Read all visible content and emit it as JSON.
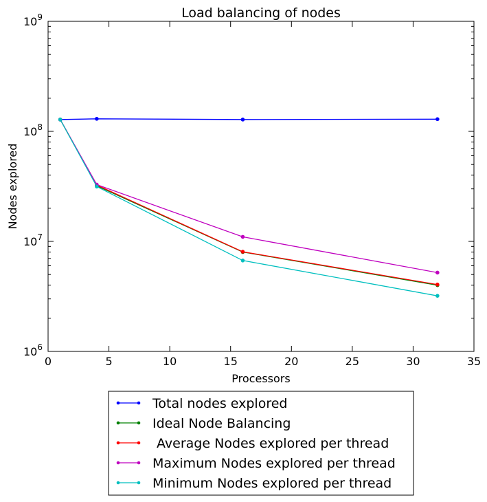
{
  "chart_data": {
    "type": "line",
    "title": "Load balancing of nodes",
    "xlabel": "Processors",
    "ylabel": "Nodes explored",
    "xlim": [
      0,
      35
    ],
    "ylim": [
      1000000,
      1000000000
    ],
    "yscale": "log",
    "grid": false,
    "legend_position": "below",
    "x_ticks": [
      "0",
      "5",
      "10",
      "15",
      "20",
      "25",
      "30",
      "35"
    ],
    "y_ticks": [
      {
        "base": "10",
        "exp": "6"
      },
      {
        "base": "10",
        "exp": "7"
      },
      {
        "base": "10",
        "exp": "8"
      },
      {
        "base": "10",
        "exp": "9"
      }
    ],
    "x": [
      1,
      4,
      16,
      32
    ],
    "series": [
      {
        "name": "Total nodes explored",
        "color": "#0000ff",
        "values": [
          128000000,
          130000000,
          128000000,
          129000000
        ]
      },
      {
        "name": "Ideal Node Balancing",
        "color": "#008000",
        "values": [
          128000000,
          32000000,
          8000000,
          4000000
        ]
      },
      {
        "name": " Average Nodes explored per thread",
        "color": "#ff0000",
        "values": [
          128000000,
          32500000,
          8050000,
          4050000
        ]
      },
      {
        "name": "Maximum Nodes explored per thread",
        "color": "#bf00bf",
        "values": [
          128000000,
          32800000,
          11000000,
          5200000
        ]
      },
      {
        "name": "Minimum Nodes explored per thread",
        "color": "#00bfbf",
        "values": [
          128000000,
          31500000,
          6700000,
          3200000
        ]
      }
    ]
  }
}
